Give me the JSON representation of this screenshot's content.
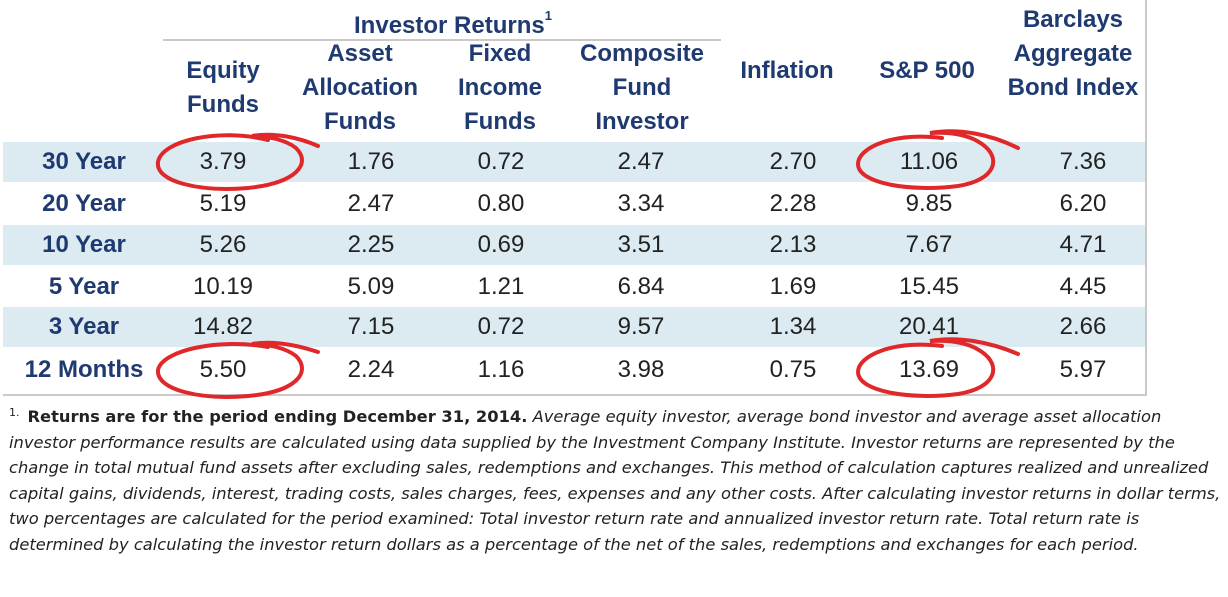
{
  "table": {
    "group_header": "Investor Returns",
    "group_footnote": "1",
    "columns": [
      "Equity Funds",
      "Asset Allocation Funds",
      "Fixed Income Funds",
      "Composite Fund Investor",
      "Inflation",
      "S&P 500",
      "Barclays Aggregate Bond Index"
    ],
    "rows": [
      {
        "label": "30 Year",
        "values": [
          "3.79",
          "1.76",
          "0.72",
          "2.47",
          "2.70",
          "11.06",
          "7.36"
        ]
      },
      {
        "label": "20 Year",
        "values": [
          "5.19",
          "2.47",
          "0.80",
          "3.34",
          "2.28",
          "9.85",
          "6.20"
        ]
      },
      {
        "label": "10 Year",
        "values": [
          "5.26",
          "2.25",
          "0.69",
          "3.51",
          "2.13",
          "7.67",
          "4.71"
        ]
      },
      {
        "label": "5 Year",
        "values": [
          "10.19",
          "5.09",
          "1.21",
          "6.84",
          "1.69",
          "15.45",
          "4.45"
        ]
      },
      {
        "label": "3 Year",
        "values": [
          "14.82",
          "7.15",
          "0.72",
          "9.57",
          "1.34",
          "20.41",
          "2.66"
        ]
      },
      {
        "label": "12 Months",
        "values": [
          "5.50",
          "2.24",
          "1.16",
          "3.98",
          "0.75",
          "13.69",
          "5.97"
        ]
      }
    ],
    "circled_cells": [
      {
        "row": "30 Year",
        "column": "Equity Funds"
      },
      {
        "row": "30 Year",
        "column": "S&P 500"
      },
      {
        "row": "12 Months",
        "column": "Equity Funds"
      },
      {
        "row": "12 Months",
        "column": "S&P 500"
      }
    ],
    "colors": {
      "header_text": "#1f3a70",
      "row_shade": "#dcebf2",
      "circle": "#e0282a"
    }
  },
  "footnote": {
    "marker": "1.",
    "lead": "Returns are for the period ending December 31, 2014.",
    "text": "Average equity investor, average bond investor and average asset allocation investor performance results are calculated using data supplied by the Investment Company Institute. Investor returns are represented by the change in total mutual fund assets after excluding sales, redemptions and exchanges. This method of calculation captures realized and unrealized capital gains, dividends, interest, trading costs, sales charges, fees, expenses and any other costs. After calculating investor returns in dollar terms, two percentages are calculated for the period examined: Total investor return rate and annualized investor return rate. Total return rate is determined by calculating the investor return dollars as a percentage of the net of the sales, redemptions and exchanges for each period."
  }
}
